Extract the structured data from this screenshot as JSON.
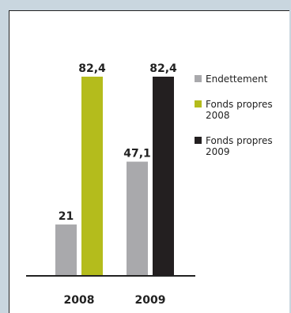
{
  "chart_data": {
    "type": "bar",
    "categories": [
      "2008",
      "2009"
    ],
    "series": [
      {
        "name": "Endettement",
        "values": [
          21,
          47.1
        ],
        "labels": [
          "21",
          "47,1"
        ],
        "color": "#a9a9ac"
      },
      {
        "name": "Fonds propres 2008",
        "values": [
          82.4,
          null
        ],
        "labels": [
          "82,4",
          ""
        ],
        "color": "#b4bc1c"
      },
      {
        "name": "Fonds propres 2009",
        "values": [
          null,
          82.4
        ],
        "labels": [
          "",
          "82,4"
        ],
        "color": "#231f20"
      }
    ],
    "ylim": [
      0,
      82.4
    ],
    "grid": false,
    "legend_placement": "right"
  },
  "legend": [
    {
      "label": "Endettement",
      "color": "#a9a9ac"
    },
    {
      "label": "Fonds propres\n2008",
      "color": "#b4bc1c"
    },
    {
      "label": "Fonds propres\n2009",
      "color": "#231f20"
    }
  ]
}
